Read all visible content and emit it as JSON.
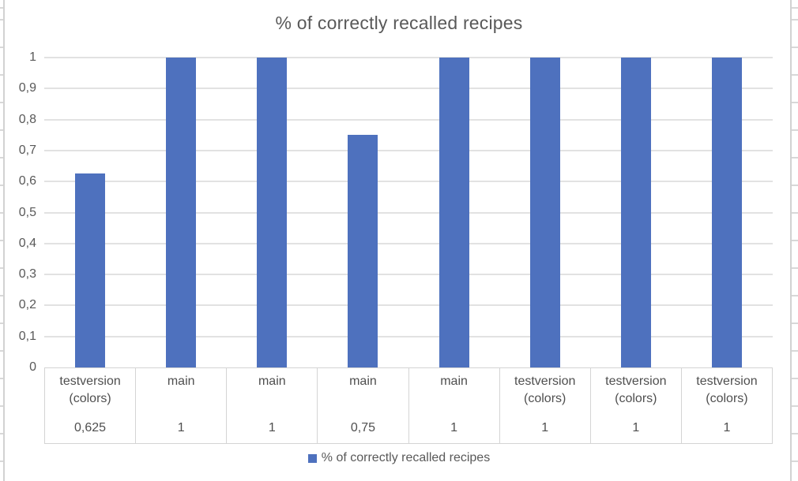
{
  "chart_data": {
    "type": "bar",
    "title": "% of correctly recalled recipes",
    "categories": [
      "testversion (colors)",
      "main",
      "main",
      "main",
      "main",
      "testversion (colors)",
      "testversion (colors)",
      "testversion (colors)"
    ],
    "values": [
      0.625,
      1,
      1,
      0.75,
      1,
      1,
      1,
      1
    ],
    "value_labels": [
      "0,625",
      "1",
      "1",
      "0,75",
      "1",
      "1",
      "1",
      "1"
    ],
    "y_tick_labels": [
      "0",
      "0,1",
      "0,2",
      "0,3",
      "0,4",
      "0,5",
      "0,6",
      "0,7",
      "0,8",
      "0,9",
      "1"
    ],
    "ylim": [
      0,
      1
    ],
    "grid": true,
    "decimal_separator": ",",
    "legend": [
      "% of correctly recalled recipes"
    ],
    "legend_position": "bottom",
    "bar_color": "#4e71be",
    "colors": {
      "title_text": "#595959",
      "axis_text": "#595959",
      "table_text": "#4f4f4f",
      "gridline": "#e2e2e2",
      "table_border": "#d4d4d4"
    }
  }
}
